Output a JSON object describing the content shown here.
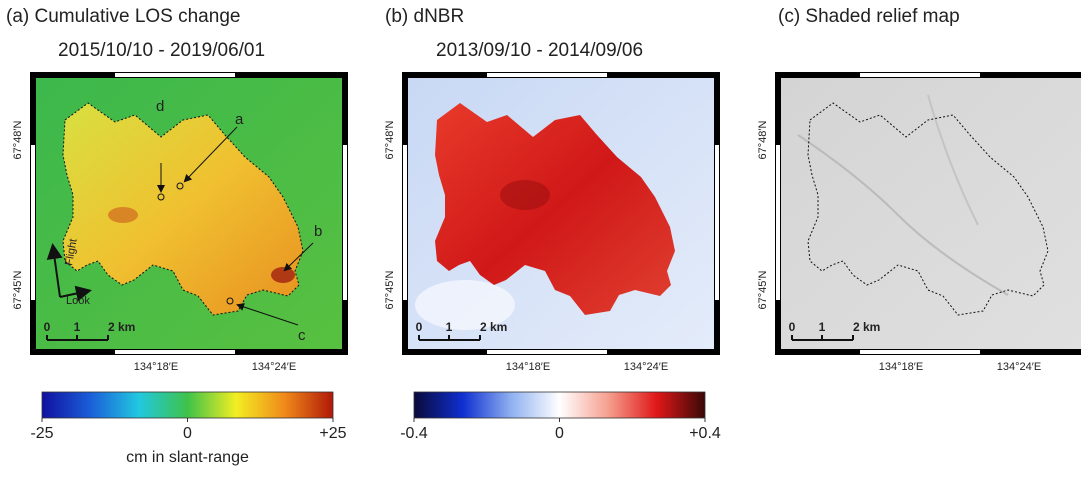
{
  "panels": [
    {
      "title": "(a) Cumulative LOS change",
      "subtitle": "2015/10/10 - 2019/06/01",
      "lat_labels": [
        "67°48′N",
        "67°45′N"
      ],
      "lon_labels": [
        "134°18′E",
        "134°24′E"
      ],
      "scale_bar": [
        "0",
        "1",
        "2 km"
      ],
      "annotations": [
        "a",
        "b",
        "c",
        "d"
      ],
      "arrow_labels": [
        "Flight",
        "Look"
      ],
      "colorbar": {
        "lim": [
          -25,
          25
        ],
        "ticks": [
          -25,
          0,
          {
            "value": 25,
            "label": "+25"
          }
        ],
        "label": "cm in slant-range",
        "colors": [
          "#1010a0",
          "#1a5fd8",
          "#22c8e0",
          "#3ec24a",
          "#f2ee22",
          "#f08a1a",
          "#b01808"
        ]
      }
    },
    {
      "title": "(b) dNBR",
      "subtitle": "2013/09/10 - 2014/09/06",
      "lat_labels": [
        "67°48′N",
        "67°45′N"
      ],
      "lon_labels": [
        "134°18′E",
        "134°24′E"
      ],
      "scale_bar": [
        "0",
        "1",
        "2 km"
      ],
      "colorbar": {
        "lim": [
          -0.4,
          0.4
        ],
        "ticks": [
          -0.4,
          0,
          {
            "value": 0.4,
            "label": "+0.4"
          }
        ],
        "colors": [
          "#0a0a3a",
          "#0f2fd0",
          "#8fb0f0",
          "#ffffff",
          "#f5a090",
          "#e01818",
          "#3a0808"
        ]
      }
    },
    {
      "title": "(c) Shaded relief map",
      "lat_labels": [
        "67°48′N",
        "67°45′N"
      ],
      "lon_labels": [
        "134°18′E",
        "134°24′E"
      ],
      "scale_bar": [
        "0",
        "1",
        "2 km"
      ]
    }
  ]
}
